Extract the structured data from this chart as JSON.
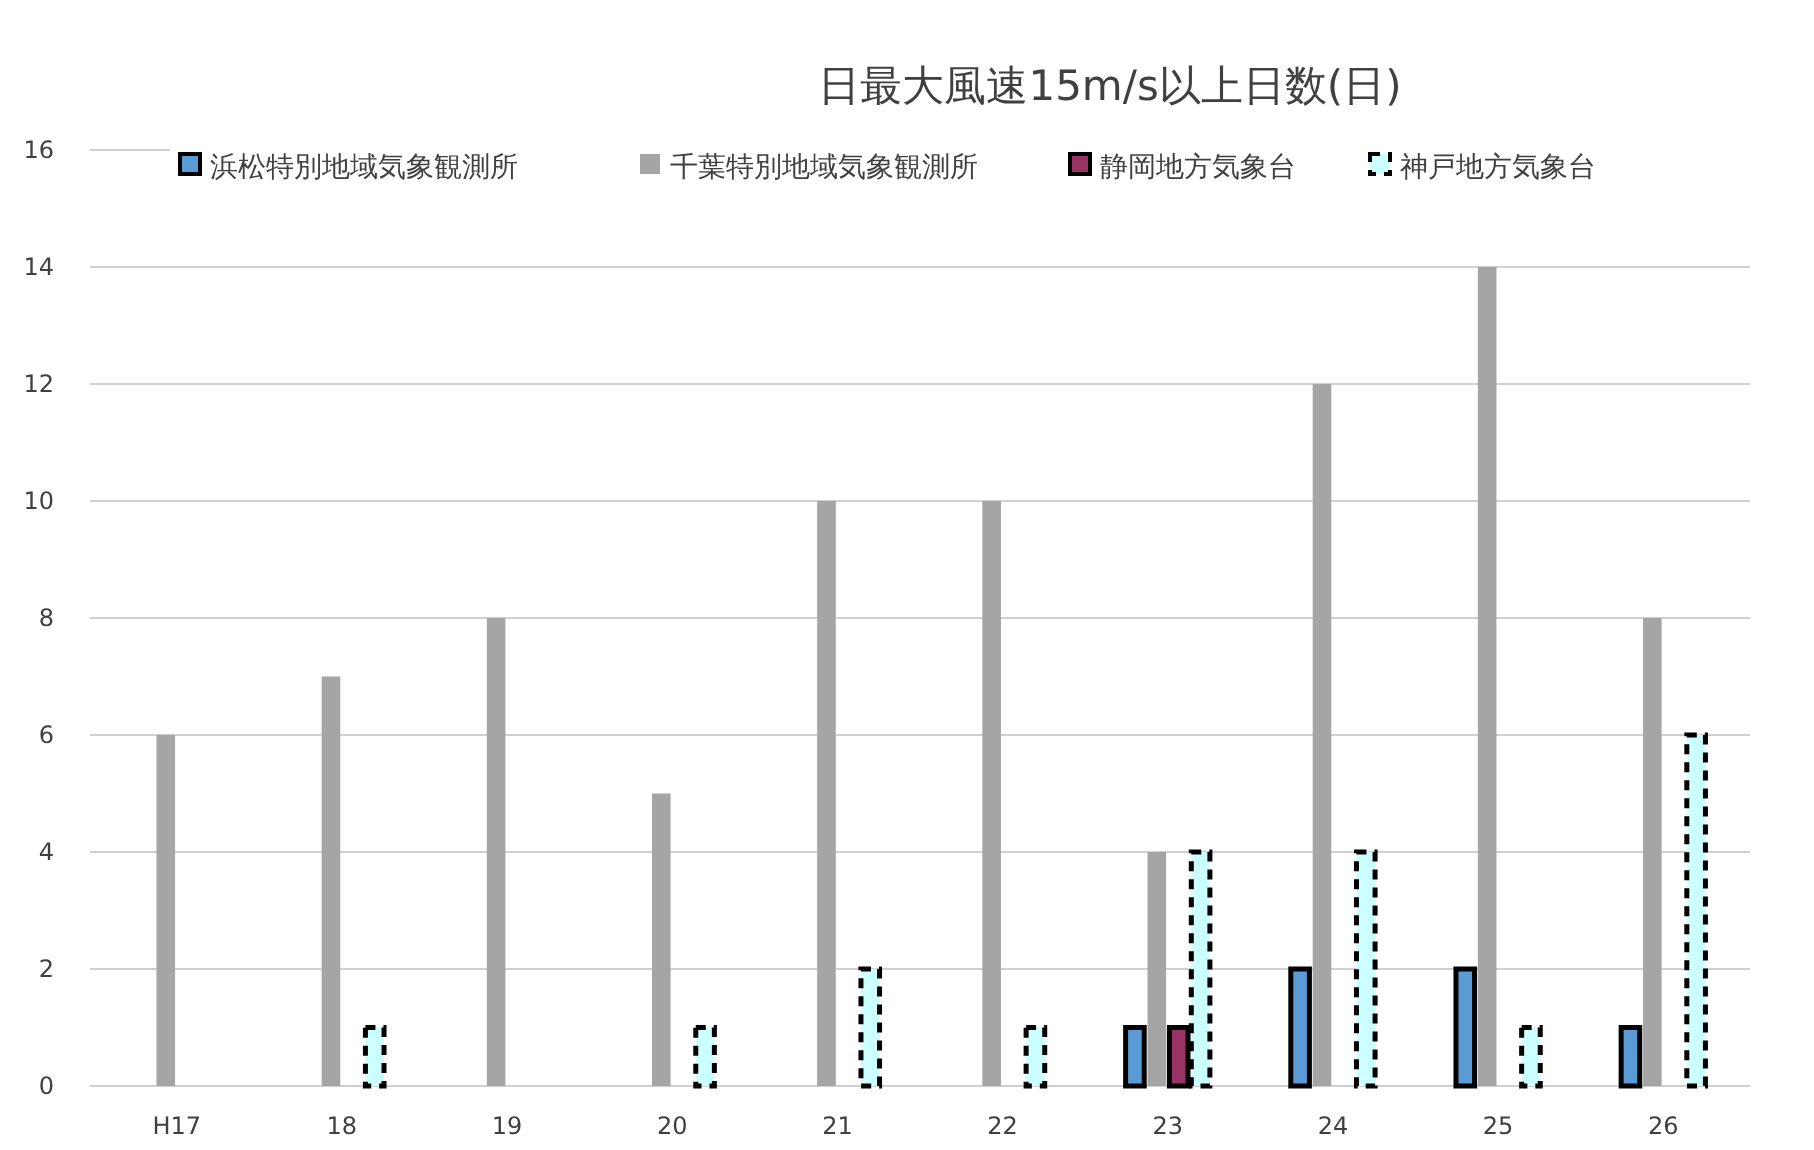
{
  "chart_data": {
    "type": "bar",
    "title": "日最大風速15m/s以上日数(日)",
    "categories": [
      "H17",
      "18",
      "19",
      "20",
      "21",
      "22",
      "23",
      "24",
      "25",
      "26"
    ],
    "series": [
      {
        "name": "浜松特別地域気象観測所",
        "color": "#5b9bd5",
        "values": [
          0,
          0,
          0,
          0,
          0,
          0,
          1,
          2,
          2,
          1
        ]
      },
      {
        "name": "千葉特別地域気象観測所",
        "color": "#a5a5a5",
        "values": [
          6,
          7,
          8,
          5,
          10,
          10,
          4,
          12,
          14,
          8
        ]
      },
      {
        "name": "静岡地方気象台",
        "color": "#993366",
        "values": [
          0,
          0,
          0,
          0,
          0,
          0,
          1,
          0,
          0,
          0
        ]
      },
      {
        "name": "神戸地方気象台",
        "color": "#ccffff",
        "line_style": "dashed",
        "values": [
          0,
          1,
          0,
          1,
          2,
          1,
          4,
          4,
          1,
          6
        ]
      }
    ],
    "ylim": [
      0,
      16
    ],
    "yticks": [
      0,
      2,
      4,
      6,
      8,
      10,
      12,
      14,
      16
    ],
    "grid": true,
    "legend": "top"
  }
}
